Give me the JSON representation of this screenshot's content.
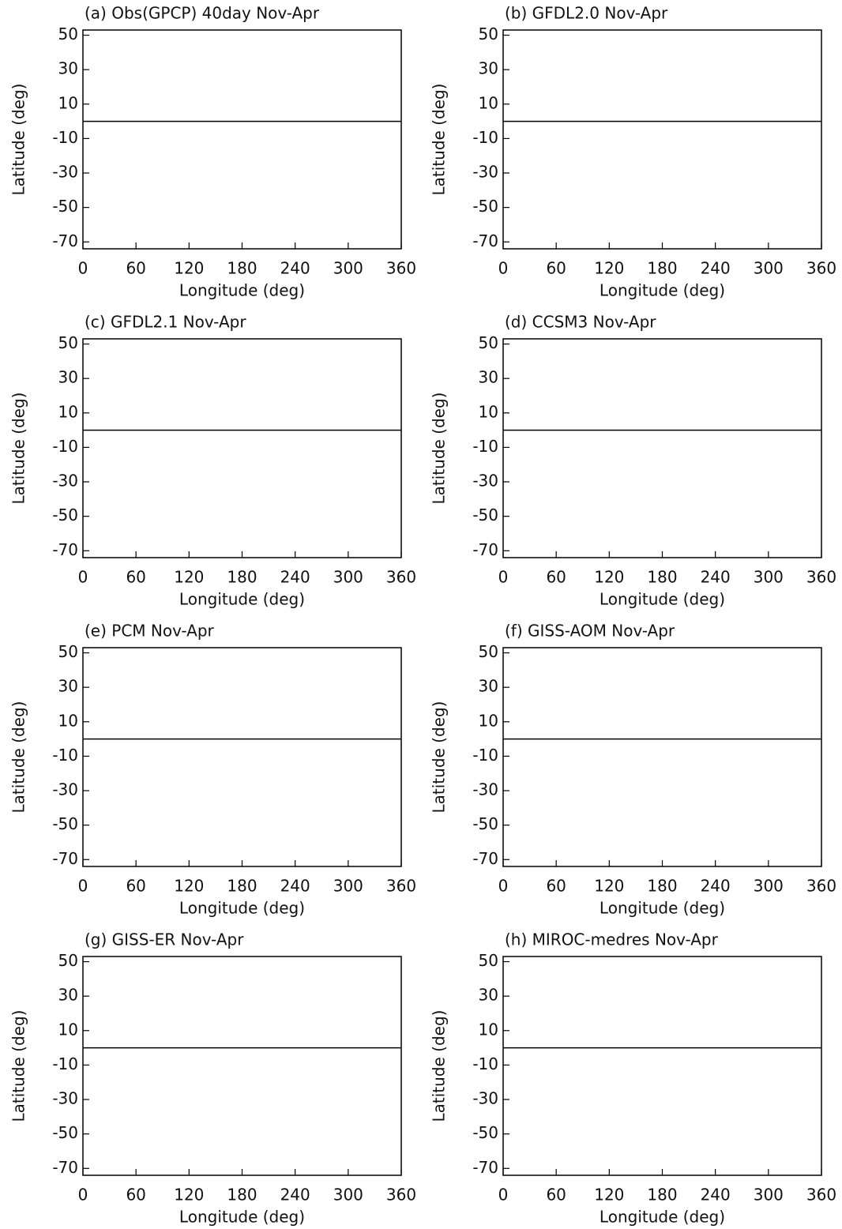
{
  "chart_data": [
    {
      "type": "contour",
      "title": "(a) Obs(GPCP) 40day Nov-Apr",
      "xlabel": "Longitude (deg)",
      "ylabel": "Latitude (deg)",
      "xlim": [
        0,
        360
      ],
      "ylim": [
        -74,
        53
      ],
      "xticks": [
        0,
        60,
        120,
        180,
        240,
        300,
        360
      ],
      "yticks": [
        50,
        30,
        10,
        -10,
        -30,
        -50,
        -70
      ]
    },
    {
      "type": "contour",
      "title": "(b) GFDL2.0 Nov-Apr",
      "xlabel": "Longitude (deg)",
      "ylabel": "Latitude (deg)",
      "xlim": [
        0,
        360
      ],
      "ylim": [
        -74,
        53
      ],
      "xticks": [
        0,
        60,
        120,
        180,
        240,
        300,
        360
      ],
      "yticks": [
        50,
        30,
        10,
        -10,
        -30,
        -50,
        -70
      ]
    },
    {
      "type": "contour",
      "title": "(c) GFDL2.1 Nov-Apr",
      "xlabel": "Longitude (deg)",
      "ylabel": "Latitude (deg)",
      "xlim": [
        0,
        360
      ],
      "ylim": [
        -74,
        53
      ],
      "xticks": [
        0,
        60,
        120,
        180,
        240,
        300,
        360
      ],
      "yticks": [
        50,
        30,
        10,
        -10,
        -30,
        -50,
        -70
      ]
    },
    {
      "type": "contour",
      "title": "(d) CCSM3 Nov-Apr",
      "xlabel": "Longitude (deg)",
      "ylabel": "Latitude (deg)",
      "xlim": [
        0,
        360
      ],
      "ylim": [
        -74,
        53
      ],
      "xticks": [
        0,
        60,
        120,
        180,
        240,
        300,
        360
      ],
      "yticks": [
        50,
        30,
        10,
        -10,
        -30,
        -50,
        -70
      ]
    },
    {
      "type": "contour",
      "title": "(e) PCM Nov-Apr",
      "xlabel": "Longitude (deg)",
      "ylabel": "Latitude (deg)",
      "xlim": [
        0,
        360
      ],
      "ylim": [
        -74,
        53
      ],
      "xticks": [
        0,
        60,
        120,
        180,
        240,
        300,
        360
      ],
      "yticks": [
        50,
        30,
        10,
        -10,
        -30,
        -50,
        -70
      ]
    },
    {
      "type": "contour",
      "title": "(f) GISS-AOM Nov-Apr",
      "xlabel": "Longitude (deg)",
      "ylabel": "Latitude (deg)",
      "xlim": [
        0,
        360
      ],
      "ylim": [
        -74,
        53
      ],
      "xticks": [
        0,
        60,
        120,
        180,
        240,
        300,
        360
      ],
      "yticks": [
        50,
        30,
        10,
        -10,
        -30,
        -50,
        -70
      ]
    },
    {
      "type": "contour",
      "title": "(g) GISS-ER Nov-Apr",
      "xlabel": "Longitude (deg)",
      "ylabel": "Latitude (deg)",
      "xlim": [
        0,
        360
      ],
      "ylim": [
        -74,
        53
      ],
      "xticks": [
        0,
        60,
        120,
        180,
        240,
        300,
        360
      ],
      "yticks": [
        50,
        30,
        10,
        -10,
        -30,
        -50,
        -70
      ]
    },
    {
      "type": "contour",
      "title": "(h) MIROC-medres Nov-Apr",
      "xlabel": "Longitude (deg)",
      "ylabel": "Latitude (deg)",
      "xlim": [
        0,
        360
      ],
      "ylim": [
        -74,
        53
      ],
      "xticks": [
        0,
        60,
        120,
        180,
        240,
        300,
        360
      ],
      "yticks": [
        50,
        30,
        10,
        -10,
        -30,
        -50,
        -70
      ]
    }
  ]
}
